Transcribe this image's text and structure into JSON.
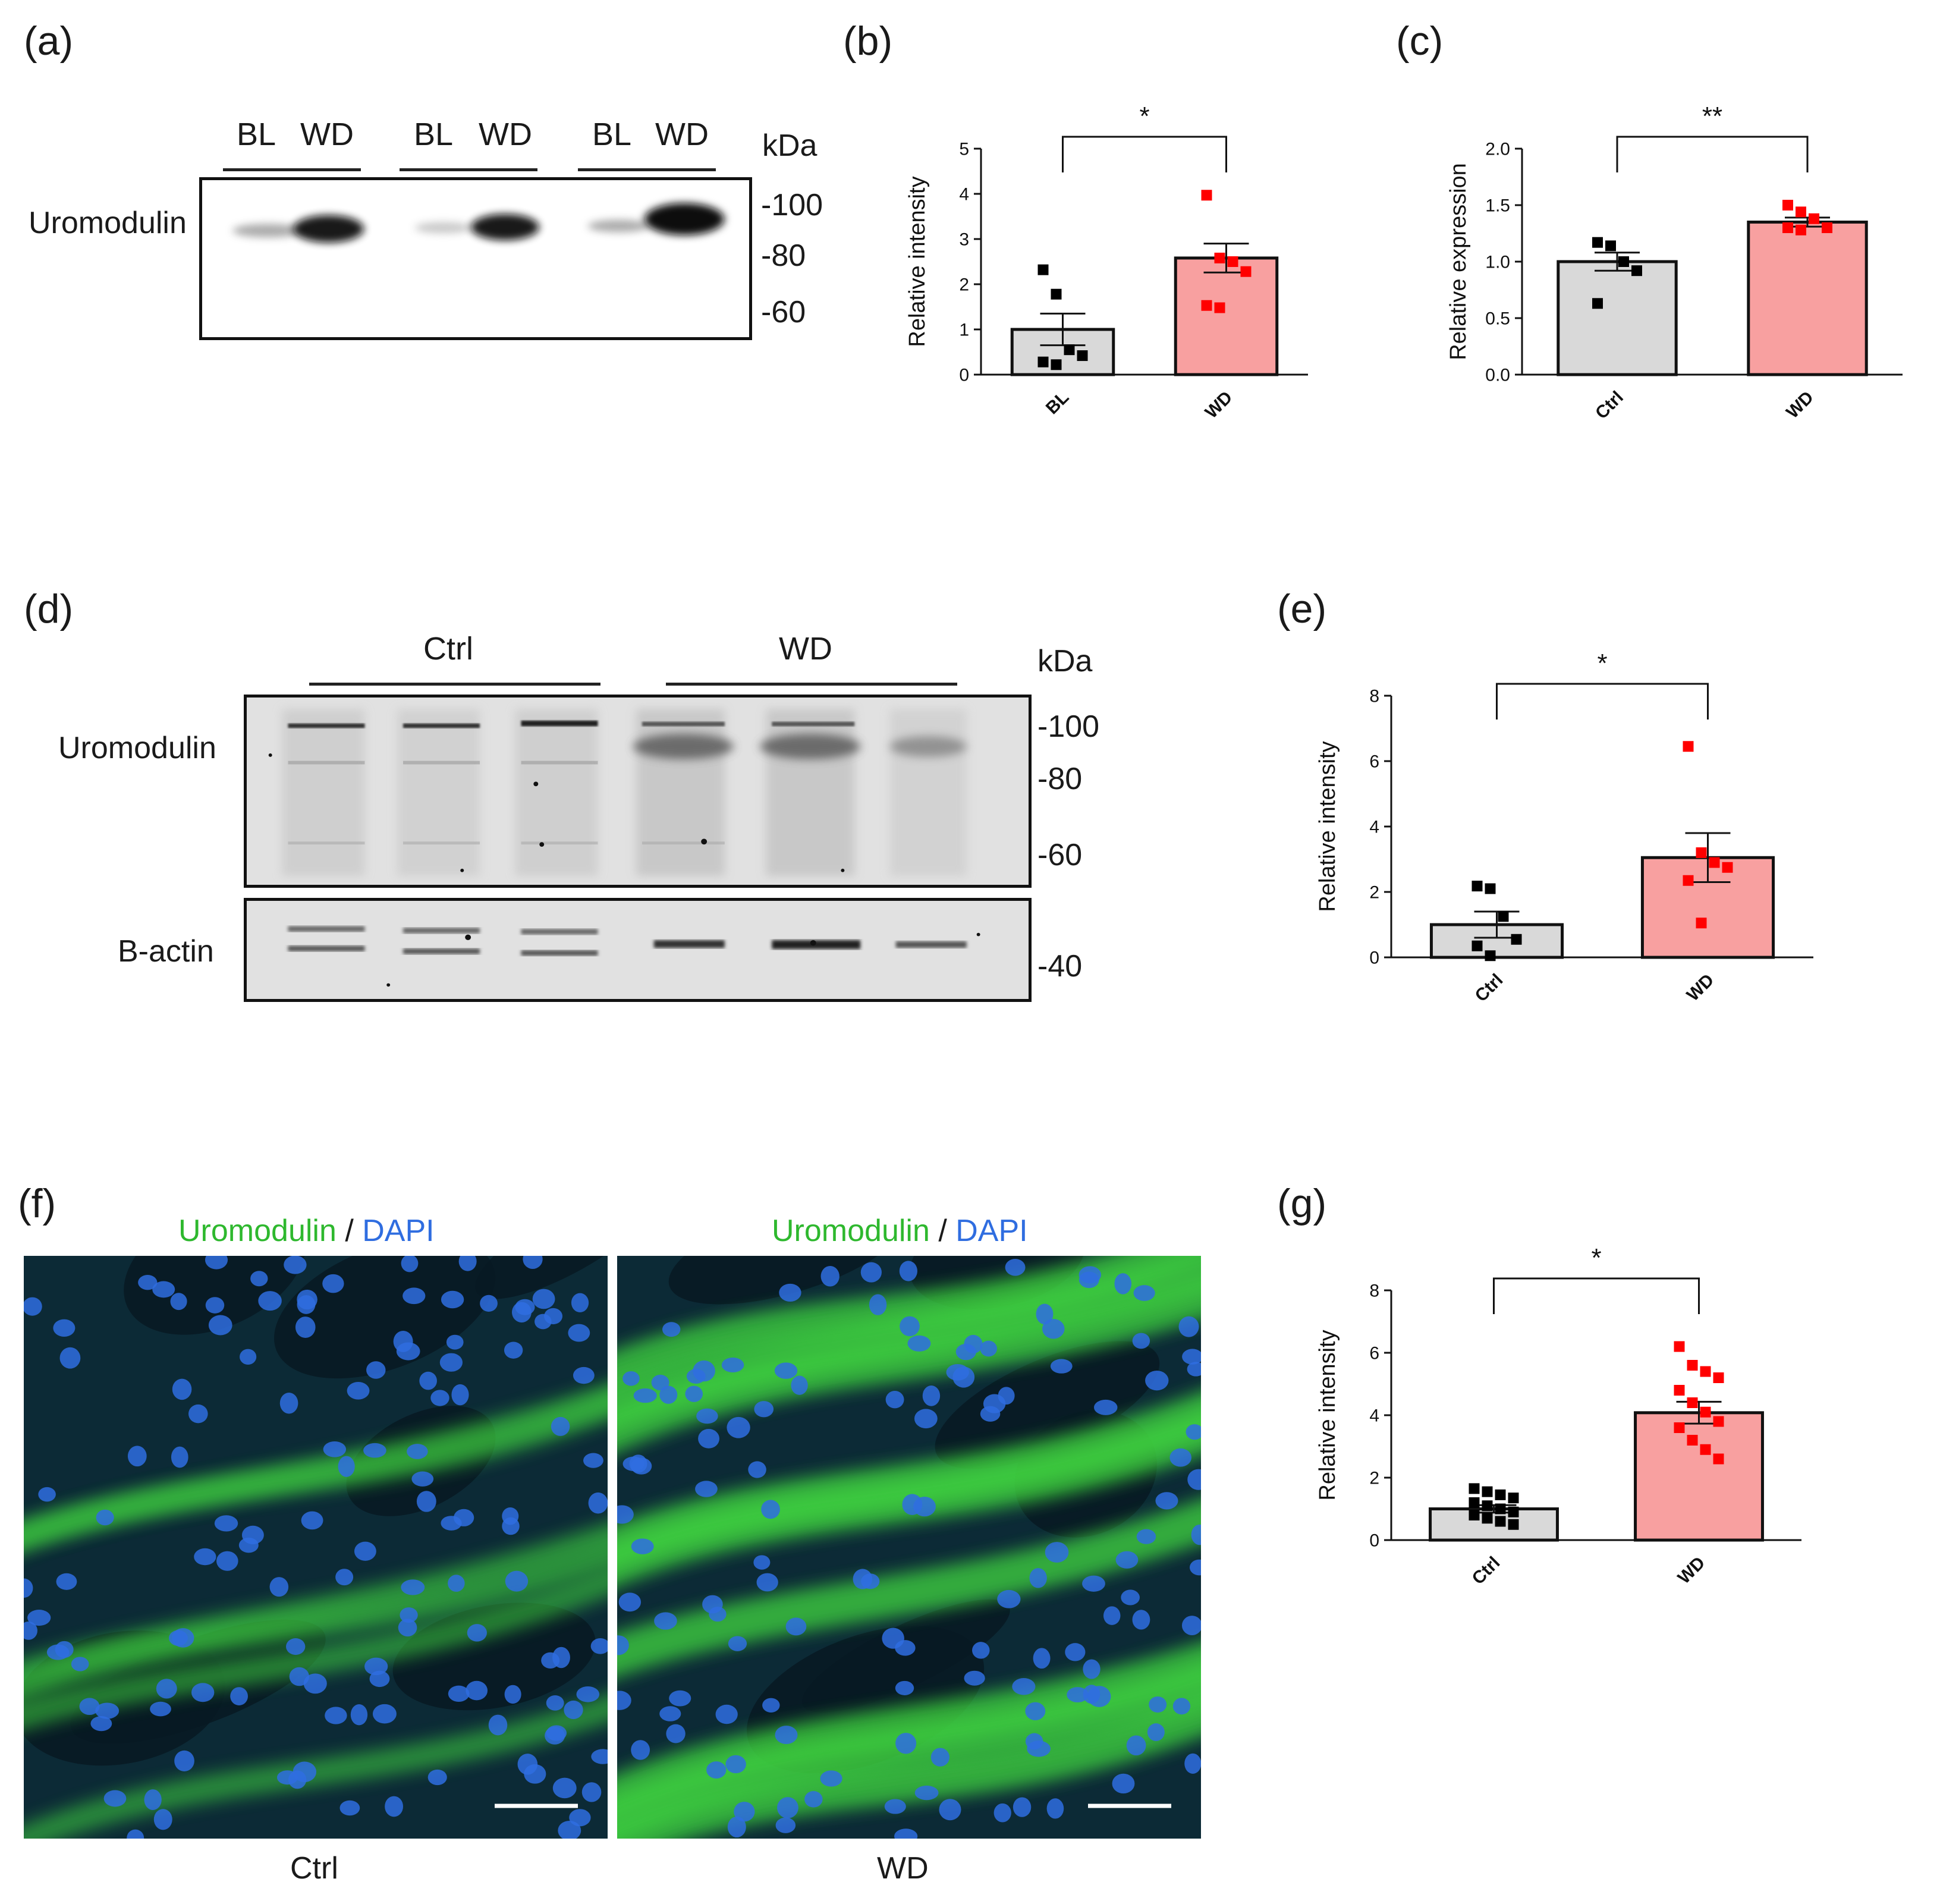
{
  "panels": {
    "a": {
      "label": "(a)",
      "lanes": [
        "BL",
        "WD",
        "BL",
        "WD",
        "BL",
        "WD"
      ],
      "kda_label": "kDa",
      "markers": [
        "-100",
        "-80",
        "-60"
      ],
      "protein": "Uromodulin"
    },
    "d": {
      "label": "(d)",
      "groups": [
        "Ctrl",
        "WD"
      ],
      "kda_label": "kDa",
      "markers_top": [
        "-100",
        "-80",
        "-60"
      ],
      "markers_bottom": [
        "-40"
      ],
      "protein_top": "Uromodulin",
      "protein_bottom": "B-actin"
    },
    "f": {
      "label": "(f)",
      "stain_green": "Uromodulin",
      "stain_sep": " / ",
      "stain_blue": "DAPI",
      "captions": [
        "Ctrl",
        "WD"
      ]
    },
    "b_label": "(b)",
    "c_label": "(c)",
    "e_label": "(e)",
    "g_label": "(g)"
  },
  "colors": {
    "control_bar": "#d9d9d9",
    "treatment_bar": "#f8a0a0",
    "control_point": "#000000",
    "treatment_point": "#ff0000",
    "green_stain": "#2eb82e",
    "blue_stain": "#2f6de0"
  },
  "chart_data": [
    {
      "id": "b",
      "type": "bar",
      "categories": [
        "BL",
        "WD"
      ],
      "values": [
        1.0,
        2.58
      ],
      "errors": [
        0.35,
        0.32
      ],
      "points": [
        [
          2.32,
          1.78,
          0.55,
          0.42,
          0.28,
          0.22
        ],
        [
          3.97,
          2.58,
          2.5,
          2.28,
          1.53,
          1.48
        ]
      ],
      "ylabel": "Relative intensity",
      "ylim": [
        0,
        5
      ],
      "yticks": [
        "0",
        "1",
        "2",
        "3",
        "4",
        "5"
      ],
      "significance": "*"
    },
    {
      "id": "c",
      "type": "bar",
      "categories": [
        "Ctrl",
        "WD"
      ],
      "values": [
        1.0,
        1.35
      ],
      "errors": [
        0.08,
        0.04
      ],
      "points": [
        [
          1.17,
          1.14,
          1.0,
          0.92,
          0.63
        ],
        [
          1.5,
          1.44,
          1.38,
          1.3,
          1.3,
          1.28
        ]
      ],
      "ylabel": "Relative expression",
      "ylim": [
        0,
        2.0
      ],
      "yticks": [
        "0.0",
        "0.5",
        "1.0",
        "1.5",
        "2.0"
      ],
      "significance": "**"
    },
    {
      "id": "e",
      "type": "bar",
      "categories": [
        "Ctrl",
        "WD"
      ],
      "values": [
        1.0,
        3.05
      ],
      "errors": [
        0.4,
        0.75
      ],
      "points": [
        [
          2.18,
          2.1,
          1.25,
          0.55,
          0.35,
          0.05
        ],
        [
          6.45,
          3.2,
          2.9,
          2.75,
          2.35,
          1.05
        ]
      ],
      "ylabel": "Relative intensity",
      "ylim": [
        0,
        8
      ],
      "yticks": [
        "0",
        "2",
        "4",
        "6",
        "8"
      ],
      "significance": "*"
    },
    {
      "id": "g",
      "type": "bar",
      "categories": [
        "Ctrl",
        "WD"
      ],
      "values": [
        1.0,
        4.08
      ],
      "errors": [
        0.12,
        0.35
      ],
      "points": [
        [
          1.65,
          1.55,
          1.45,
          1.35,
          1.2,
          1.1,
          1.0,
          0.9,
          0.8,
          0.7,
          0.6,
          0.5
        ],
        [
          6.2,
          5.6,
          5.4,
          5.2,
          4.8,
          4.4,
          4.1,
          3.8,
          3.6,
          3.2,
          2.9,
          2.6
        ]
      ],
      "ylabel": "Relative intensity",
      "ylim": [
        0,
        8
      ],
      "yticks": [
        "0",
        "2",
        "4",
        "6",
        "8"
      ],
      "significance": "*"
    }
  ]
}
